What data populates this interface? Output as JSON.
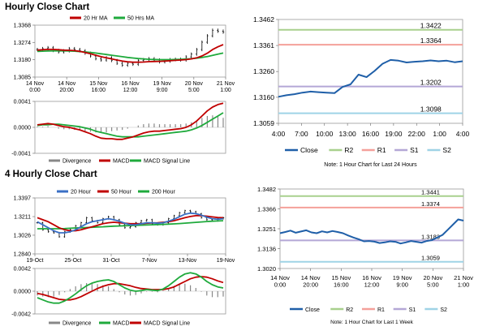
{
  "sections": [
    {
      "title": "Hourly Close Chart"
    },
    {
      "title": "4 Hourly Close Chart"
    }
  ],
  "colors": {
    "close": "#1f5fa8",
    "r2": "#a8d08d",
    "r1": "#f4a09a",
    "s1": "#b4a7d6",
    "s2": "#9fd3e6",
    "ma_red": "#c00000",
    "ma_green": "#1faa3c",
    "ma_blue": "#3a6fc4",
    "div": "#888888"
  },
  "chart_data": [
    {
      "id": "hourly_price",
      "type": "candlestick",
      "title": "Hourly Close Chart",
      "x_ticks": [
        "14 Nov\n0:00",
        "14 Nov\n20:00",
        "15 Nov\n16:00",
        "16 Nov\n12:00",
        "19 Nov\n9:00",
        "20 Nov\n5:00",
        "21 Nov\n1:00"
      ],
      "y_ticks": [
        "1.3368",
        "1.3274",
        "1.3180",
        "1.3085"
      ],
      "ylim": [
        1.3085,
        1.3368
      ],
      "legend": [
        {
          "name": "20 Hr MA",
          "color": "#c00000"
        },
        {
          "name": "50 Hrs MA",
          "color": "#1faa3c"
        }
      ],
      "close": [
        1.3235,
        1.324,
        1.3245,
        1.323,
        1.3222,
        1.3228,
        1.324,
        1.3235,
        1.3228,
        1.3215,
        1.32,
        1.3185,
        1.3178,
        1.319,
        1.3175,
        1.316,
        1.315,
        1.316,
        1.3155,
        1.3175,
        1.318,
        1.3185,
        1.3178,
        1.3168,
        1.3172,
        1.318,
        1.3182,
        1.3178,
        1.3195,
        1.321,
        1.3235,
        1.3275,
        1.331,
        1.334,
        1.3335,
        1.333
      ],
      "ma20": [
        1.3232,
        1.3234,
        1.3236,
        1.3236,
        1.3234,
        1.3232,
        1.3231,
        1.3229,
        1.3225,
        1.3219,
        1.3212,
        1.3204,
        1.3196,
        1.319,
        1.3184,
        1.3178,
        1.3172,
        1.3168,
        1.3166,
        1.3166,
        1.3167,
        1.3169,
        1.317,
        1.3171,
        1.3172,
        1.3174,
        1.3176,
        1.3178,
        1.318,
        1.3184,
        1.319,
        1.32,
        1.3215,
        1.3235,
        1.325,
        1.3262
      ],
      "ma50": [
        1.3225,
        1.3226,
        1.3227,
        1.3228,
        1.3228,
        1.3228,
        1.3227,
        1.3226,
        1.3224,
        1.3222,
        1.3219,
        1.3216,
        1.3212,
        1.3208,
        1.3204,
        1.32,
        1.3196,
        1.3192,
        1.3189,
        1.3186,
        1.3184,
        1.3182,
        1.3181,
        1.318,
        1.318,
        1.318,
        1.3181,
        1.3182,
        1.3183,
        1.3185,
        1.3188,
        1.3192,
        1.3197,
        1.3203,
        1.321,
        1.3216
      ]
    },
    {
      "id": "hourly_macd",
      "type": "macd",
      "y_ticks": [
        "0.0041",
        "0.0000",
        "-0.0041"
      ],
      "ylim": [
        -0.0041,
        0.0041
      ],
      "legend": [
        {
          "name": "Divergence",
          "color": "#888888"
        },
        {
          "name": "MACD",
          "color": "#c00000"
        },
        {
          "name": "MACD Signal Line",
          "color": "#1faa3c"
        }
      ],
      "macd": [
        0.0004,
        0.0005,
        0.0006,
        0.0005,
        0.0003,
        0.0001,
        0.0,
        -0.0002,
        -0.0004,
        -0.0007,
        -0.001,
        -0.0014,
        -0.0017,
        -0.0018,
        -0.0018,
        -0.0019,
        -0.0019,
        -0.0017,
        -0.0015,
        -0.0012,
        -0.0009,
        -0.0007,
        -0.0006,
        -0.0006,
        -0.0005,
        -0.0004,
        -0.0003,
        -0.0002,
        0.0,
        0.0004,
        0.001,
        0.0018,
        0.0026,
        0.0032,
        0.0036,
        0.0038
      ],
      "signal": [
        0.0003,
        0.0004,
        0.0004,
        0.0005,
        0.0005,
        0.0004,
        0.0003,
        0.0002,
        0.0001,
        -0.0001,
        -0.0003,
        -0.0006,
        -0.0008,
        -0.001,
        -0.0012,
        -0.0014,
        -0.0015,
        -0.0015,
        -0.0015,
        -0.0015,
        -0.0014,
        -0.0013,
        -0.0012,
        -0.0011,
        -0.001,
        -0.0009,
        -0.0008,
        -0.0007,
        -0.0006,
        -0.0004,
        -0.0001,
        0.0003,
        0.0008,
        0.0013,
        0.0018,
        0.0023
      ]
    },
    {
      "id": "hourly_pivot",
      "type": "line",
      "y_ticks": [
        "1.3462",
        "1.3361",
        "1.3260",
        "1.3160",
        "1.3059"
      ],
      "ylim": [
        1.3059,
        1.3462
      ],
      "x_ticks": [
        "4:00",
        "7:00",
        "10:00",
        "13:00",
        "16:00",
        "19:00",
        "22:00",
        "1:00",
        "4:00"
      ],
      "levels": [
        {
          "name": "R2",
          "value": 1.3422,
          "label": "1.3422"
        },
        {
          "name": "R1",
          "value": 1.3364,
          "label": "1.3364"
        },
        {
          "name": "S1",
          "value": 1.3202,
          "label": "1.3202"
        },
        {
          "name": "S2",
          "value": 1.3098,
          "label": "1.3098"
        }
      ],
      "close": [
        1.3162,
        1.3168,
        1.3172,
        1.3178,
        1.3182,
        1.318,
        1.3178,
        1.3176,
        1.32,
        1.321,
        1.3248,
        1.3238,
        1.3262,
        1.329,
        1.3305,
        1.3302,
        1.3295,
        1.3298,
        1.33,
        1.3303,
        1.33,
        1.3302,
        1.3296,
        1.33
      ],
      "legend": [
        "Close",
        "R2",
        "R1",
        "S1",
        "S2"
      ],
      "note": "Note: 1 Hour Chart for Last 24 Hours"
    },
    {
      "id": "4hourly_price",
      "type": "candlestick",
      "title": "4 Hourly Close Chart",
      "x_ticks": [
        "19-Oct",
        "25-Oct",
        "31-Oct",
        "7-Nov",
        "13-Nov",
        "19-Nov"
      ],
      "y_ticks": [
        "1.3397",
        "1.3211",
        "1.3026",
        "1.2840"
      ],
      "ylim": [
        1.284,
        1.3397
      ],
      "legend": [
        {
          "name": "20 Hour",
          "color": "#3a6fc4"
        },
        {
          "name": "50 Hour",
          "color": "#c00000"
        },
        {
          "name": "200 Hour",
          "color": "#1faa3c"
        }
      ],
      "close": [
        1.315,
        1.308,
        1.306,
        1.305,
        1.301,
        1.306,
        1.308,
        1.312,
        1.315,
        1.32,
        1.317,
        1.315,
        1.319,
        1.321,
        1.318,
        1.313,
        1.31,
        1.311,
        1.315,
        1.317,
        1.318,
        1.314,
        1.313,
        1.315,
        1.319,
        1.322,
        1.325,
        1.327,
        1.326,
        1.324,
        1.32,
        1.318,
        1.317,
        1.319,
        1.32
      ],
      "ma20": [
        1.316,
        1.313,
        1.31,
        1.307,
        1.305,
        1.305,
        1.306,
        1.308,
        1.311,
        1.314,
        1.316,
        1.317,
        1.318,
        1.319,
        1.318,
        1.3165,
        1.3145,
        1.313,
        1.313,
        1.314,
        1.315,
        1.315,
        1.3145,
        1.315,
        1.3165,
        1.3185,
        1.321,
        1.3235,
        1.3245,
        1.324,
        1.3225,
        1.3205,
        1.319,
        1.3185,
        1.319
      ],
      "ma50": [
        1.32,
        1.318,
        1.316,
        1.313,
        1.31,
        1.308,
        1.307,
        1.307,
        1.308,
        1.3095,
        1.311,
        1.3125,
        1.314,
        1.315,
        1.3155,
        1.315,
        1.3145,
        1.314,
        1.314,
        1.314,
        1.3145,
        1.3148,
        1.315,
        1.3155,
        1.316,
        1.317,
        1.3185,
        1.32,
        1.3212,
        1.322,
        1.322,
        1.3215,
        1.3208,
        1.3202,
        1.32
      ],
      "ma200": [
        1.309,
        1.309,
        1.309,
        1.309,
        1.309,
        1.3092,
        1.3095,
        1.3098,
        1.31,
        1.3102,
        1.3105,
        1.3108,
        1.311,
        1.3113,
        1.3116,
        1.3118,
        1.312,
        1.3122,
        1.3124,
        1.3126,
        1.3128,
        1.313,
        1.3132,
        1.3134,
        1.3136,
        1.3139,
        1.3142,
        1.3146,
        1.315,
        1.3154,
        1.3158,
        1.3162,
        1.3165,
        1.3168,
        1.317
      ]
    },
    {
      "id": "4hourly_macd",
      "type": "macd",
      "y_ticks": [
        "0.0042",
        "0.0000",
        "-0.0042"
      ],
      "ylim": [
        -0.0042,
        0.0042
      ],
      "legend": [
        {
          "name": "Divergence",
          "color": "#888888"
        },
        {
          "name": "MACD",
          "color": "#1faa3c"
        },
        {
          "name": "MACD Signal Line",
          "color": "#c00000"
        }
      ],
      "macd": [
        -0.0012,
        -0.0016,
        -0.002,
        -0.0022,
        -0.0022,
        -0.0018,
        -0.0012,
        -0.0005,
        0.0003,
        0.001,
        0.0015,
        0.0018,
        0.002,
        0.0021,
        0.0018,
        0.0012,
        0.0006,
        0.0002,
        0.0,
        0.0001,
        0.0003,
        0.0002,
        0.0001,
        0.0004,
        0.001,
        0.0018,
        0.0026,
        0.0032,
        0.0034,
        0.0032,
        0.0026,
        0.0018,
        0.0012,
        0.0008,
        0.0006
      ],
      "signal": [
        -0.0004,
        -0.0006,
        -0.0009,
        -0.0012,
        -0.0015,
        -0.0016,
        -0.0016,
        -0.0014,
        -0.001,
        -0.0005,
        0.0,
        0.0005,
        0.0009,
        0.0012,
        0.0014,
        0.0014,
        0.0012,
        0.001,
        0.0007,
        0.0005,
        0.0004,
        0.0003,
        0.0003,
        0.0003,
        0.0005,
        0.0008,
        0.0013,
        0.0018,
        0.0023,
        0.0026,
        0.0027,
        0.0026,
        0.0023,
        0.0019,
        0.0016
      ]
    },
    {
      "id": "4hourly_pivot",
      "type": "line",
      "y_ticks": [
        "1.3482",
        "1.3366",
        "1.3251",
        "1.3136",
        "1.3020"
      ],
      "ylim": [
        1.302,
        1.3482
      ],
      "x_ticks": [
        "14 Nov\n0:00",
        "14 Nov\n20:00",
        "15 Nov\n16:00",
        "16 Nov\n12:00",
        "19 Nov\n9:00",
        "20 Nov\n5:00",
        "21 Nov\n1:00"
      ],
      "levels": [
        {
          "name": "R2",
          "value": 1.3441,
          "label": "1.3441"
        },
        {
          "name": "R1",
          "value": 1.3374,
          "label": "1.3374"
        },
        {
          "name": "S1",
          "value": 1.3183,
          "label": "1.3183"
        },
        {
          "name": "S2",
          "value": 1.3059,
          "label": "1.3059"
        }
      ],
      "close": [
        1.3225,
        1.3232,
        1.324,
        1.3228,
        1.3235,
        1.3242,
        1.323,
        1.3225,
        1.3236,
        1.323,
        1.3238,
        1.3232,
        1.3225,
        1.3212,
        1.32,
        1.319,
        1.3178,
        1.318,
        1.3176,
        1.3168,
        1.3172,
        1.3178,
        1.3175,
        1.3165,
        1.3172,
        1.318,
        1.3175,
        1.317,
        1.318,
        1.3185,
        1.32,
        1.3215,
        1.3245,
        1.3275,
        1.3305,
        1.3298
      ],
      "legend": [
        "Close",
        "R2",
        "R1",
        "S1",
        "S2"
      ],
      "note": "Note: 1 Hour Chart for Last 1 Week"
    }
  ]
}
